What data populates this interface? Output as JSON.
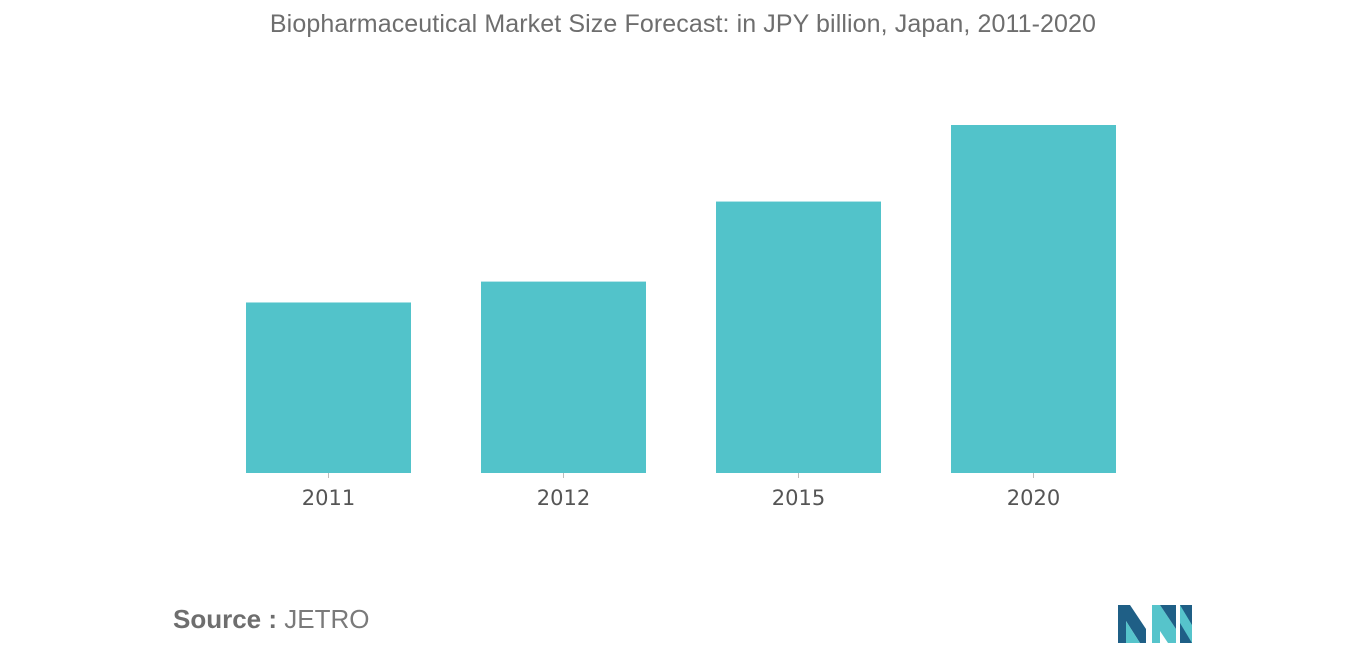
{
  "chart_data": {
    "type": "bar",
    "title": "Biopharmaceutical Market Size Forecast: in JPY billion, Japan, 2011-2020",
    "categories": [
      "2011",
      "2012",
      "2015",
      "2020"
    ],
    "values": [
      49,
      55,
      78,
      100
    ],
    "ylim": [
      0,
      100
    ],
    "xlabel": "",
    "ylabel": "",
    "grid": false,
    "legend": "none",
    "bar_color": "#52c3ca"
  },
  "source": {
    "prefix": "Source :",
    "value": "JETRO"
  },
  "logo": {
    "icon": "mordor-intelligence-logo-icon",
    "colors": {
      "dark": "#1f5f86",
      "light": "#56c4cb"
    }
  }
}
